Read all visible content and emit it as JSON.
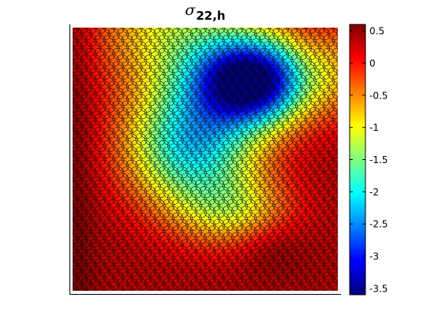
{
  "chart_data": {
    "type": "heatmap",
    "title": {
      "symbol": "σ",
      "subscript": "22,h"
    },
    "xlabel": "",
    "ylabel": "",
    "grid": false,
    "mesh_overlay": "polygonal",
    "colormap": "jet",
    "colorbar": {
      "location": "right",
      "range": [
        -3.6,
        0.6
      ],
      "ticks": [
        0.5,
        0,
        -0.5,
        -1,
        -1.5,
        -2,
        -2.5,
        -3,
        -3.5
      ],
      "tick_labels": [
        "0.5",
        "0",
        "-0.5",
        "-1",
        "-1.5",
        "-2",
        "-2.5",
        "-3",
        "-3.5"
      ]
    },
    "field_features": [
      {
        "kind": "minimum",
        "x": 0.68,
        "y": 0.79,
        "value": -3.6
      },
      {
        "kind": "local-maximum",
        "x": 0.75,
        "y": 0.17,
        "value": -0.1
      },
      {
        "kind": "maximum",
        "x": 0.03,
        "y": 0.7,
        "value": 0.6
      }
    ]
  }
}
